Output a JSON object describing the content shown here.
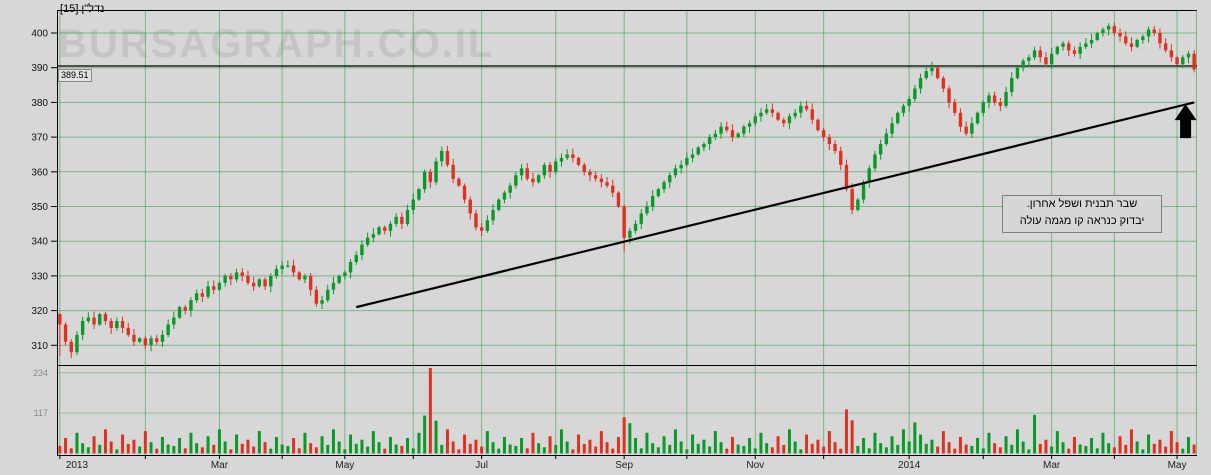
{
  "meta": {
    "watermark": "BURSAGRAPH.CO.IL",
    "instrument_label": "נדל\"ן [15]",
    "last_price_label": "389.51"
  },
  "annotation": {
    "line1": "שבר תבנית ושפל אחרון.",
    "line2": "יבדוק כנראה קו מגמה עולה"
  },
  "chart_data": {
    "type": "candlestick",
    "title": "נדל\"ן [15]",
    "y_axis": {
      "ticks": [
        400,
        390,
        380,
        370,
        360,
        350,
        340,
        330,
        320,
        310
      ],
      "min": 304,
      "max": 406
    },
    "volume_axis": {
      "ticks": [
        234,
        117
      ],
      "max": 250
    },
    "x_axis": {
      "labels": [
        {
          "i": 3,
          "t": "2013"
        },
        {
          "i": 28,
          "t": "Mar"
        },
        {
          "i": 50,
          "t": "May"
        },
        {
          "i": 74,
          "t": "Jul"
        },
        {
          "i": 99,
          "t": "Sep"
        },
        {
          "i": 122,
          "t": "Nov"
        },
        {
          "i": 149,
          "t": "2014"
        },
        {
          "i": 174,
          "t": "Mar"
        },
        {
          "i": 196,
          "t": "May"
        }
      ],
      "month_lines": [
        0,
        15,
        28,
        39,
        50,
        62,
        74,
        87,
        99,
        110,
        122,
        134,
        149,
        162,
        174,
        185,
        196
      ]
    },
    "resistance_level": 390.5,
    "last_price": 389.51,
    "trendline": {
      "from": {
        "index": 52,
        "price": 321
      },
      "to": {
        "index": 199,
        "price": 380
      }
    },
    "arrow": {
      "index": 197.5,
      "price_tip": 379.5
    },
    "special_lows": [
      [
        0,
        307
      ],
      [
        99,
        337
      ]
    ],
    "closes": [
      316,
      311,
      308,
      313,
      317,
      318,
      316,
      319,
      317,
      315,
      317,
      315,
      313,
      311,
      312,
      310,
      312,
      311,
      313,
      316,
      318,
      321,
      320,
      323,
      325,
      324,
      327,
      326,
      328,
      330,
      329,
      331,
      330,
      328,
      327,
      329,
      327,
      330,
      332,
      333,
      333,
      331,
      329,
      330,
      326,
      322,
      323,
      326,
      328,
      330,
      331,
      334,
      336,
      339,
      341,
      342,
      344,
      343,
      345,
      347,
      345,
      349,
      352,
      355,
      360,
      357,
      363,
      366,
      362,
      358,
      356,
      352,
      348,
      344,
      343,
      346,
      349,
      352,
      354,
      356,
      359,
      361,
      358,
      357,
      359,
      362,
      360,
      363,
      364,
      365,
      364,
      362,
      360,
      359,
      358,
      357,
      356,
      354,
      350,
      341,
      343,
      345,
      348,
      350,
      353,
      355,
      357,
      359,
      361,
      362,
      364,
      365,
      367,
      368,
      370,
      371,
      373,
      372,
      370,
      371,
      373,
      374,
      376,
      377,
      378,
      377,
      375,
      374,
      376,
      377,
      379,
      378,
      375,
      372,
      370,
      368,
      366,
      362,
      355,
      349,
      352,
      357,
      361,
      365,
      368,
      371,
      374,
      377,
      379,
      381,
      384,
      387,
      389,
      390,
      387,
      384,
      380,
      377,
      373,
      371,
      374,
      377,
      380,
      382,
      380,
      379,
      383,
      387,
      390,
      392,
      393,
      395,
      393,
      391,
      394,
      396,
      397,
      395,
      394,
      396,
      397,
      398,
      400,
      401,
      402,
      400,
      399,
      397,
      396,
      398,
      399,
      401,
      400,
      397,
      395,
      393,
      391,
      393,
      394,
      389.51
    ],
    "volumes": [
      22,
      45,
      15,
      60,
      30,
      18,
      50,
      25,
      70,
      35,
      12,
      55,
      28,
      40,
      20,
      65,
      33,
      14,
      48,
      26,
      22,
      45,
      15,
      60,
      30,
      18,
      50,
      25,
      70,
      35,
      12,
      55,
      28,
      40,
      20,
      65,
      33,
      14,
      48,
      26,
      22,
      45,
      15,
      60,
      30,
      18,
      50,
      25,
      70,
      35,
      12,
      55,
      28,
      40,
      20,
      65,
      33,
      14,
      48,
      26,
      22,
      45,
      15,
      60,
      110,
      248,
      95,
      25,
      70,
      35,
      12,
      55,
      28,
      40,
      20,
      65,
      33,
      14,
      48,
      26,
      22,
      45,
      15,
      60,
      30,
      18,
      50,
      25,
      70,
      35,
      12,
      55,
      28,
      40,
      20,
      65,
      33,
      14,
      48,
      105,
      88,
      45,
      15,
      60,
      30,
      18,
      50,
      25,
      70,
      35,
      12,
      55,
      28,
      40,
      20,
      65,
      33,
      14,
      48,
      26,
      22,
      45,
      15,
      60,
      30,
      18,
      50,
      25,
      70,
      35,
      12,
      55,
      28,
      40,
      20,
      65,
      33,
      14,
      128,
      96,
      22,
      45,
      15,
      60,
      30,
      18,
      50,
      25,
      70,
      35,
      90,
      55,
      28,
      40,
      20,
      65,
      33,
      14,
      48,
      26,
      22,
      45,
      15,
      60,
      30,
      18,
      50,
      25,
      70,
      35,
      12,
      112,
      28,
      40,
      20,
      65,
      33,
      14,
      48,
      26,
      22,
      45,
      15,
      60,
      30,
      18,
      50,
      25,
      70,
      35,
      12,
      55,
      28,
      40,
      20,
      65,
      33,
      14,
      48,
      26
    ],
    "colors": {
      "up": "#0a9928",
      "down": "#dd3222",
      "grid": "#4aa25c",
      "background": "#d7d7d7",
      "line": "#000000",
      "watermark": "#c5c5c5",
      "axis_text": "#111111",
      "volume_text": "#8a8a8a"
    }
  }
}
